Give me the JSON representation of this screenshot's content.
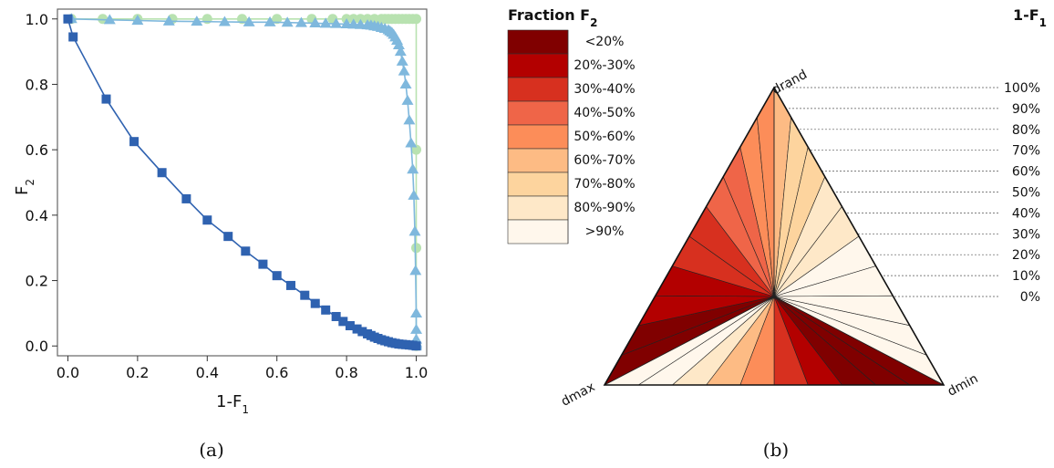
{
  "chart_data": [
    {
      "type": "line",
      "panel_label": "(a)",
      "xlabel_main": "1-F",
      "xlabel_sub": "1",
      "ylabel_main": "F",
      "ylabel_sub": "2",
      "xlim": [
        -0.03,
        1.03
      ],
      "ylim": [
        -0.03,
        1.03
      ],
      "xticks": [
        "0.0",
        "0.2",
        "0.4",
        "0.6",
        "0.8",
        "1.0"
      ],
      "yticks": [
        "0.0",
        "0.2",
        "0.4",
        "0.6",
        "0.8",
        "1.0"
      ],
      "grid": false,
      "series": [
        {
          "marker": "circle",
          "color": "#b8e2b0",
          "x": [
            0.01,
            0.1,
            0.2,
            0.3,
            0.4,
            0.5,
            0.6,
            0.7,
            0.76,
            0.8,
            0.82,
            0.84,
            0.86,
            0.88,
            0.9,
            0.91,
            0.92,
            0.93,
            0.94,
            0.95,
            0.96,
            0.97,
            0.98,
            0.99,
            1.0,
            1.0,
            1.0,
            1.0
          ],
          "y": [
            1.0,
            1.0,
            1.0,
            1.0,
            1.0,
            1.0,
            1.0,
            1.0,
            1.0,
            1.0,
            1.0,
            1.0,
            1.0,
            1.0,
            1.0,
            1.0,
            1.0,
            1.0,
            1.0,
            1.0,
            1.0,
            1.0,
            1.0,
            1.0,
            1.0,
            0.6,
            0.3,
            0.0
          ]
        },
        {
          "marker": "triangle",
          "color": "#7fb8dd",
          "x": [
            0.01,
            0.12,
            0.2,
            0.29,
            0.37,
            0.45,
            0.52,
            0.58,
            0.63,
            0.67,
            0.71,
            0.74,
            0.77,
            0.8,
            0.82,
            0.84,
            0.86,
            0.87,
            0.88,
            0.89,
            0.9,
            0.91,
            0.92,
            0.925,
            0.93,
            0.935,
            0.94,
            0.945,
            0.95,
            0.955,
            0.96,
            0.965,
            0.97,
            0.975,
            0.98,
            0.985,
            0.99,
            0.993,
            0.996,
            0.998,
            1.0,
            1.0,
            1.0,
            1.0,
            1.0,
            1.0
          ],
          "y": [
            1.0,
            0.997,
            0.995,
            0.993,
            0.992,
            0.991,
            0.99,
            0.99,
            0.989,
            0.988,
            0.987,
            0.986,
            0.985,
            0.984,
            0.983,
            0.982,
            0.981,
            0.98,
            0.978,
            0.976,
            0.973,
            0.97,
            0.966,
            0.962,
            0.958,
            0.952,
            0.944,
            0.934,
            0.92,
            0.9,
            0.87,
            0.84,
            0.8,
            0.75,
            0.69,
            0.62,
            0.54,
            0.46,
            0.35,
            0.23,
            0.1,
            0.05,
            0.02,
            0.01,
            0.005,
            0.0
          ]
        },
        {
          "marker": "square",
          "color": "#2f62b0",
          "x": [
            0.0,
            0.015,
            0.11,
            0.19,
            0.27,
            0.34,
            0.4,
            0.46,
            0.51,
            0.56,
            0.6,
            0.64,
            0.68,
            0.71,
            0.74,
            0.77,
            0.79,
            0.81,
            0.83,
            0.845,
            0.86,
            0.87,
            0.88,
            0.89,
            0.9,
            0.91,
            0.92,
            0.93,
            0.94,
            0.95,
            0.96,
            0.97,
            0.98,
            0.99,
            1.0
          ],
          "y": [
            1.0,
            0.945,
            0.755,
            0.625,
            0.53,
            0.45,
            0.385,
            0.335,
            0.29,
            0.25,
            0.215,
            0.185,
            0.155,
            0.13,
            0.11,
            0.09,
            0.075,
            0.062,
            0.052,
            0.044,
            0.037,
            0.032,
            0.027,
            0.023,
            0.019,
            0.016,
            0.013,
            0.01,
            0.008,
            0.006,
            0.005,
            0.004,
            0.003,
            0.002,
            0.0
          ]
        }
      ]
    },
    {
      "type": "area",
      "panel_label": "(b)",
      "legend_title_main": "Fraction F",
      "legend_title_sub": "2",
      "corner_title_main": "1-F",
      "corner_title_sub": "1",
      "legend": [
        {
          "label": "<20%",
          "color": "#800000"
        },
        {
          "label": "20%-30%",
          "color": "#b30000"
        },
        {
          "label": "30%-40%",
          "color": "#d7301f"
        },
        {
          "label": "40%-50%",
          "color": "#ef6548"
        },
        {
          "label": "50%-60%",
          "color": "#fc8d59"
        },
        {
          "label": "60%-70%",
          "color": "#fdbb84"
        },
        {
          "label": "70%-80%",
          "color": "#fdd49e"
        },
        {
          "label": "80%-90%",
          "color": "#fee8c8"
        },
        {
          "label": ">90%",
          "color": "#fff7ec"
        }
      ],
      "vertices": {
        "top": "drand",
        "left": "dmax",
        "right": "dmin"
      },
      "levels": [
        "100%",
        "90%",
        "80%",
        "70%",
        "60%",
        "50%",
        "40%",
        "30%",
        "20%",
        "10%",
        "0%"
      ],
      "level_values": [
        1.0,
        0.9,
        0.8,
        0.7,
        0.6,
        0.5,
        0.4,
        0.3,
        0.2,
        0.1,
        0.0
      ],
      "center_value": 0.0,
      "slices_left_face": [
        0.1,
        0.15,
        0.2,
        0.25,
        0.3,
        0.35,
        0.4,
        0.45,
        0.5,
        0.55
      ],
      "slices_right_face": [
        0.6,
        0.7,
        0.75,
        0.8,
        0.85,
        0.9,
        0.93,
        0.96,
        0.98,
        0.99
      ],
      "slices_bottom_face": [
        0.05,
        0.1,
        0.15,
        0.25,
        0.35,
        0.5,
        0.65,
        0.8,
        0.9,
        0.97
      ]
    }
  ]
}
